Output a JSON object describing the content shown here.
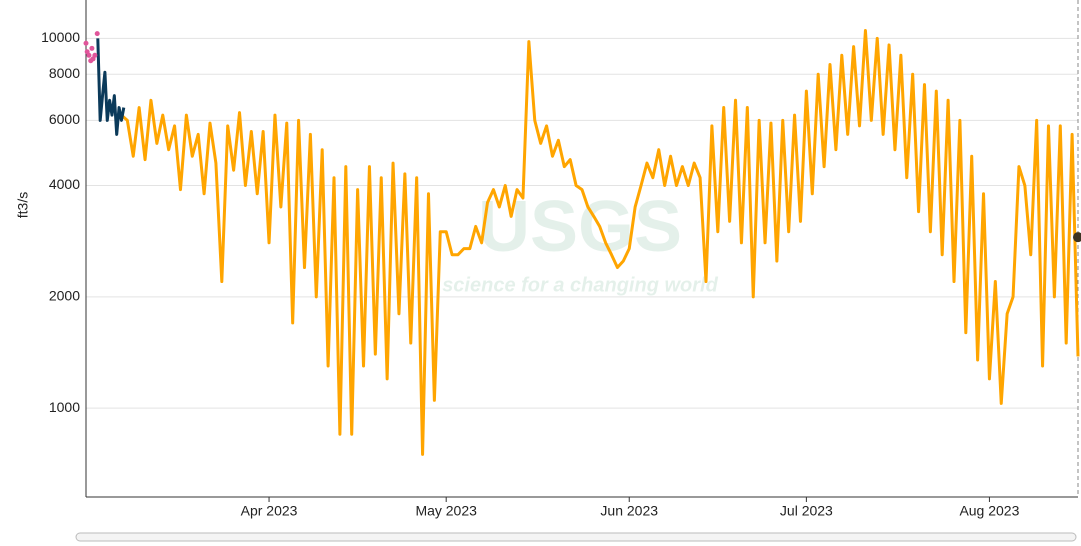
{
  "chart_data": {
    "type": "line",
    "y_label": "ft3/s",
    "watermark": {
      "logo": "USGS",
      "tagline": "science for a changing world"
    },
    "log_y": true,
    "grid": true,
    "xlim": [
      0,
      168
    ],
    "xticks": [
      {
        "value": 31,
        "label": "Apr 2023"
      },
      {
        "value": 61,
        "label": "May 2023"
      },
      {
        "value": 92,
        "label": "Jun 2023"
      },
      {
        "value": 122,
        "label": "Jul 2023"
      },
      {
        "value": 153,
        "label": "Aug 2023"
      }
    ],
    "ylim": [
      575,
      12700
    ],
    "yticks": [
      1000,
      2000,
      4000,
      6000,
      8000,
      10000
    ],
    "series": [
      {
        "type": "scatter",
        "color": "#e0559a",
        "x": [
          0,
          0.2,
          0.5,
          0.8,
          1.0,
          1.2,
          1.5,
          1.9
        ],
        "values": [
          9700,
          9200,
          9000,
          8700,
          9400,
          8800,
          9000,
          10300
        ]
      },
      {
        "type": "line",
        "color": "#0b3a5a",
        "x": [
          2,
          2.4,
          2.8,
          3.2,
          3.6,
          4,
          4.4,
          4.8,
          5.2,
          5.6,
          6,
          6.4
        ],
        "values": [
          10000,
          6000,
          7000,
          8100,
          6000,
          6800,
          6200,
          7000,
          5500,
          6500,
          6000,
          6500
        ]
      },
      {
        "type": "line",
        "color": "#ffa500",
        "x": [
          6,
          7,
          8,
          9,
          10,
          11,
          12,
          13,
          14,
          15,
          16,
          17,
          18,
          19,
          20,
          21,
          22,
          23,
          24,
          25,
          26,
          27,
          28,
          29,
          30,
          31,
          32,
          33,
          34,
          35,
          36,
          37,
          38,
          39,
          40,
          41,
          42,
          43,
          44,
          45,
          46,
          47,
          48,
          49,
          50,
          51,
          52,
          53,
          54,
          55,
          56,
          57,
          58,
          59,
          60,
          61,
          62,
          63,
          64,
          65,
          66,
          67,
          68,
          69,
          70,
          71,
          72,
          73,
          74,
          75,
          76,
          77,
          78,
          79,
          80,
          81,
          82,
          83,
          84,
          85,
          86,
          87,
          88,
          89,
          90,
          91,
          92,
          93,
          94,
          95,
          96,
          97,
          98,
          99,
          100,
          101,
          102,
          103,
          104,
          105,
          106,
          107,
          108,
          109,
          110,
          111,
          112,
          113,
          114,
          115,
          116,
          117,
          118,
          119,
          120,
          121,
          122,
          123,
          124,
          125,
          126,
          127,
          128,
          129,
          130,
          131,
          132,
          133,
          134,
          135,
          136,
          137,
          138,
          139,
          140,
          141,
          142,
          143,
          144,
          145,
          146,
          147,
          148,
          149,
          150,
          151,
          152,
          153,
          154,
          155,
          156,
          157,
          158,
          159,
          160,
          161,
          162,
          163,
          164,
          165,
          166,
          167,
          168
        ],
        "values": [
          6200,
          6000,
          4800,
          6500,
          4700,
          6800,
          5200,
          6200,
          5000,
          5800,
          3900,
          6200,
          4800,
          5500,
          3800,
          5900,
          4600,
          2200,
          5800,
          4400,
          6300,
          4000,
          5600,
          3800,
          5600,
          2800,
          6200,
          3500,
          5900,
          1700,
          6000,
          2400,
          5500,
          2000,
          5000,
          1300,
          4200,
          850,
          4500,
          850,
          3900,
          1300,
          4500,
          1400,
          4200,
          1200,
          4600,
          1800,
          4300,
          1500,
          4200,
          750,
          3800,
          1050,
          3000,
          3000,
          2600,
          2600,
          2700,
          2700,
          3100,
          2800,
          3600,
          3900,
          3500,
          4000,
          3300,
          3900,
          3700,
          9800,
          6000,
          5200,
          5800,
          4800,
          5300,
          4500,
          4700,
          4000,
          3900,
          3500,
          3300,
          3100,
          2800,
          2600,
          2400,
          2500,
          2700,
          3500,
          4000,
          4600,
          4200,
          5000,
          4000,
          4800,
          4000,
          4500,
          4000,
          4600,
          4200,
          2200,
          5800,
          3000,
          6500,
          3200,
          6800,
          2800,
          6500,
          2000,
          6000,
          2800,
          5900,
          2500,
          6000,
          3000,
          6200,
          3200,
          7200,
          3800,
          8000,
          4500,
          8500,
          5000,
          9000,
          5500,
          9500,
          5800,
          10500,
          6000,
          10000,
          5500,
          9600,
          5000,
          9000,
          4200,
          8000,
          3400,
          7500,
          3000,
          7200,
          2600,
          6800,
          2200,
          6000,
          1600,
          4800,
          1350,
          3800,
          1200,
          2200,
          1030,
          1800,
          2000,
          4500,
          4000,
          2600,
          6000,
          1300,
          5800,
          2000,
          5800,
          1500,
          5500,
          1380
        ]
      },
      {
        "type": "scatter",
        "color": "#3d3322",
        "x": [
          168
        ],
        "values": [
          2900
        ]
      }
    ]
  }
}
